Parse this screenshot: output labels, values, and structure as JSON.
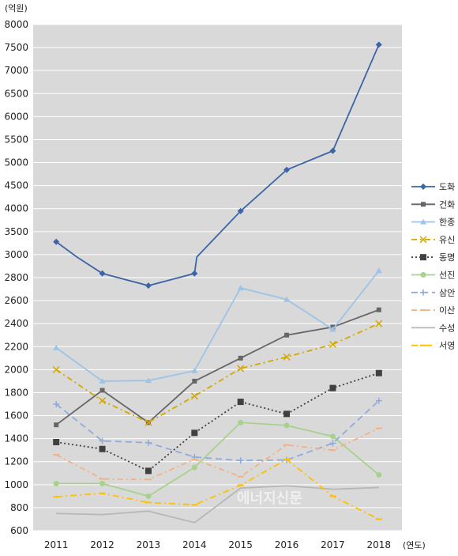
{
  "chart_data": {
    "type": "line",
    "y_unit_label": "(억원)",
    "x_unit_label": "(연도)",
    "categories": [
      "2011",
      "2012",
      "2013",
      "2014",
      "2015",
      "2016",
      "2017",
      "2018"
    ],
    "y_ticks": [
      "8000",
      "7500",
      "7000",
      "6500",
      "6000",
      "5500",
      "5000",
      "4500",
      "4000",
      "3500",
      "3000",
      "2800",
      "2600",
      "2400",
      "2200",
      "2000",
      "1800",
      "1600",
      "1400",
      "1200",
      "1000",
      "800",
      "600"
    ],
    "grid": true,
    "legend_position": "right",
    "series": [
      {
        "name": "도화",
        "color": "#3d65a6",
        "marker": "diamond",
        "dash": "",
        "path_values": [
          3278,
          2979,
          2836,
          2730,
          2836,
          2979,
          3945,
          4842,
          5254,
          7562
        ],
        "marker_values": [
          3278,
          2836,
          2730,
          2836,
          3945,
          4842,
          5254,
          7562
        ]
      },
      {
        "name": "건화",
        "color": "#666666",
        "marker": "square",
        "dash": "",
        "values": [
          1520,
          1820,
          1540,
          1900,
          2100,
          2300,
          2370,
          2520
        ]
      },
      {
        "name": "한종",
        "color": "#9dc3e6",
        "marker": "triangle",
        "dash": "",
        "values": [
          2190,
          1900,
          1905,
          1990,
          2710,
          2610,
          2350,
          2860
        ]
      },
      {
        "name": "유신",
        "color": "#d4a800",
        "marker": "x",
        "dash": "7,4,2,4",
        "values": [
          2000,
          1730,
          1540,
          1770,
          2010,
          2110,
          2220,
          2400
        ]
      },
      {
        "name": "동명",
        "color": "#404040",
        "marker": "bigsquare",
        "dash": "2,3",
        "values": [
          1370,
          1310,
          1120,
          1450,
          1720,
          1615,
          1840,
          1970
        ]
      },
      {
        "name": "선진",
        "color": "#a9d18e",
        "marker": "circle",
        "dash": "",
        "values": [
          1010,
          1010,
          900,
          1150,
          1540,
          1515,
          1420,
          1085
        ]
      },
      {
        "name": "삼안",
        "color": "#8faadc",
        "marker": "plus",
        "dash": "8,5",
        "values": [
          1700,
          1380,
          1365,
          1240,
          1210,
          1215,
          1360,
          1730
        ]
      },
      {
        "name": "이산",
        "color": "#f4b183",
        "marker": "dash",
        "dash": "7,4,2,4",
        "values": [
          1260,
          1050,
          1045,
          1220,
          1070,
          1345,
          1300,
          1490
        ]
      },
      {
        "name": "수성",
        "color": "#b7b7b7",
        "marker": "none",
        "dash": "",
        "values": [
          750,
          740,
          770,
          670,
          970,
          990,
          960,
          975
        ]
      },
      {
        "name": "서영",
        "color": "#ffc000",
        "marker": "dash",
        "dash": "8,4,2,4",
        "values": [
          895,
          925,
          845,
          825,
          995,
          1220,
          900,
          700
        ]
      }
    ]
  },
  "watermark": "에너지신문"
}
